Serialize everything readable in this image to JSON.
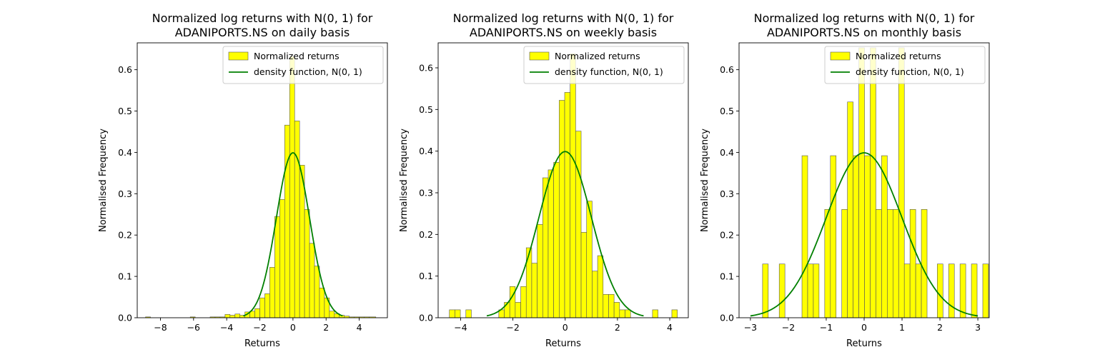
{
  "chart_data": [
    {
      "type": "bar",
      "title": "Normalized log returns with N(0, 1) for\nADANIPORTS.NS on daily basis",
      "xlabel": "Returns",
      "ylabel": "Normalised Frequency",
      "xlim": [
        -9.4,
        5.7
      ],
      "ylim": [
        0,
        0.665
      ],
      "xticks": [
        -8,
        -6,
        -4,
        -2,
        0,
        2,
        4
      ],
      "yticks": [
        0.0,
        0.1,
        0.2,
        0.3,
        0.4,
        0.5,
        0.6
      ],
      "legend": {
        "position": "top-right",
        "entries": [
          "Normalized returns",
          "density function, N(0, 1)"
        ]
      },
      "histogram": {
        "name": "Normalized returns",
        "color": "#ffff00",
        "edgecolor": "#555555",
        "bins": [
          [
            -8.9,
            -8.6,
            0.002
          ],
          [
            -6.2,
            -5.9,
            0.002
          ],
          [
            -5.0,
            -4.7,
            0.002
          ],
          [
            -4.7,
            -4.4,
            0.002
          ],
          [
            -4.4,
            -4.1,
            0.002
          ],
          [
            -4.1,
            -3.8,
            0.008
          ],
          [
            -3.8,
            -3.5,
            0.006
          ],
          [
            -3.5,
            -3.2,
            0.009
          ],
          [
            -3.2,
            -2.9,
            0.006
          ],
          [
            -2.9,
            -2.6,
            0.014
          ],
          [
            -2.6,
            -2.3,
            0.016
          ],
          [
            -2.3,
            -2.0,
            0.022
          ],
          [
            -2.0,
            -1.7,
            0.048
          ],
          [
            -1.7,
            -1.4,
            0.058
          ],
          [
            -1.4,
            -1.1,
            0.122
          ],
          [
            -1.1,
            -0.8,
            0.245
          ],
          [
            -0.8,
            -0.5,
            0.286
          ],
          [
            -0.5,
            -0.2,
            0.466
          ],
          [
            -0.2,
            0.1,
            0.632
          ],
          [
            0.1,
            0.4,
            0.476
          ],
          [
            0.4,
            0.7,
            0.369
          ],
          [
            0.7,
            1.0,
            0.262
          ],
          [
            1.0,
            1.3,
            0.18
          ],
          [
            1.3,
            1.6,
            0.125
          ],
          [
            1.6,
            1.9,
            0.072
          ],
          [
            1.9,
            2.2,
            0.048
          ],
          [
            2.2,
            2.5,
            0.016
          ],
          [
            2.5,
            2.8,
            0.01
          ],
          [
            2.8,
            3.1,
            0.006
          ],
          [
            3.1,
            3.4,
            0.004
          ],
          [
            3.4,
            3.7,
            0.002
          ],
          [
            3.7,
            4.0,
            0.002
          ],
          [
            4.0,
            4.3,
            0.002
          ],
          [
            4.3,
            4.6,
            0.002
          ],
          [
            4.6,
            5.0,
            0.002
          ]
        ]
      },
      "density": {
        "name": "density function, N(0, 1)",
        "color": "#008000",
        "x_range": [
          -3,
          3
        ]
      }
    },
    {
      "type": "bar",
      "title": "Normalized log returns with N(0, 1) for\nADANIPORTS.NS on weekly basis",
      "xlabel": "Returns",
      "ylabel": "Normalised Frequency",
      "xlim": [
        -4.86,
        4.71
      ],
      "ylim": [
        0,
        0.66
      ],
      "xticks": [
        -4,
        -2,
        0,
        2,
        4
      ],
      "yticks": [
        0.0,
        0.1,
        0.2,
        0.3,
        0.4,
        0.5,
        0.6
      ],
      "legend": {
        "position": "top-right",
        "entries": [
          "Normalized returns",
          "density function, N(0, 1)"
        ]
      },
      "histogram": {
        "name": "Normalized returns",
        "color": "#ffff00",
        "edgecolor": "#555555",
        "bins": [
          [
            -4.43,
            -4.22,
            0.019
          ],
          [
            -4.22,
            -4.01,
            0.019
          ],
          [
            -3.8,
            -3.59,
            0.019
          ],
          [
            -2.54,
            -2.33,
            0.019
          ],
          [
            -2.33,
            -2.12,
            0.037
          ],
          [
            -2.12,
            -1.91,
            0.075
          ],
          [
            -1.91,
            -1.7,
            0.037
          ],
          [
            -1.7,
            -1.49,
            0.075
          ],
          [
            -1.49,
            -1.28,
            0.168
          ],
          [
            -1.28,
            -1.07,
            0.131
          ],
          [
            -1.07,
            -0.86,
            0.224
          ],
          [
            -0.86,
            -0.65,
            0.336
          ],
          [
            -0.65,
            -0.44,
            0.355
          ],
          [
            -0.44,
            -0.23,
            0.373
          ],
          [
            -0.23,
            -0.02,
            0.522
          ],
          [
            -0.02,
            0.19,
            0.541
          ],
          [
            0.19,
            0.4,
            0.634
          ],
          [
            0.4,
            0.61,
            0.448
          ],
          [
            0.61,
            0.82,
            0.205
          ],
          [
            0.82,
            1.03,
            0.28
          ],
          [
            1.03,
            1.24,
            0.112
          ],
          [
            1.24,
            1.45,
            0.149
          ],
          [
            1.45,
            1.66,
            0.056
          ],
          [
            1.66,
            1.87,
            0.056
          ],
          [
            1.87,
            2.08,
            0.037
          ],
          [
            2.08,
            2.29,
            0.019
          ],
          [
            2.29,
            2.5,
            0.019
          ],
          [
            3.34,
            3.55,
            0.019
          ],
          [
            4.08,
            4.29,
            0.019
          ]
        ]
      },
      "density": {
        "name": "density function, N(0, 1)",
        "color": "#008000",
        "x_range": [
          -3,
          3
        ]
      }
    },
    {
      "type": "bar",
      "title": "Normalized log returns with N(0, 1) for\nADANIPORTS.NS on monthly basis",
      "xlabel": "Returns",
      "ylabel": "Normalised Frequency",
      "xlim": [
        -3.3,
        3.3
      ],
      "ylim": [
        0,
        0.665
      ],
      "xticks": [
        -3,
        -2,
        -1,
        0,
        1,
        2,
        3
      ],
      "yticks": [
        0.0,
        0.1,
        0.2,
        0.3,
        0.4,
        0.5,
        0.6
      ],
      "legend": {
        "position": "top-right",
        "entries": [
          "Normalized returns",
          "density function, N(0, 1)"
        ]
      },
      "histogram": {
        "name": "Normalized returns",
        "color": "#ffff00",
        "edgecolor": "#555555",
        "bins": [
          [
            -2.68,
            -2.53,
            0.13
          ],
          [
            -2.24,
            -2.09,
            0.13
          ],
          [
            -1.64,
            -1.49,
            0.392
          ],
          [
            -1.49,
            -1.34,
            0.13
          ],
          [
            -1.34,
            -1.19,
            0.13
          ],
          [
            -1.04,
            -0.89,
            0.262
          ],
          [
            -0.89,
            -0.74,
            0.392
          ],
          [
            -0.59,
            -0.44,
            0.262
          ],
          [
            -0.44,
            -0.29,
            0.522
          ],
          [
            -0.29,
            -0.14,
            0.392
          ],
          [
            -0.14,
            0.01,
            0.653
          ],
          [
            0.01,
            0.16,
            0.392
          ],
          [
            0.16,
            0.31,
            0.653
          ],
          [
            0.31,
            0.46,
            0.262
          ],
          [
            0.46,
            0.61,
            0.392
          ],
          [
            0.61,
            0.76,
            0.262
          ],
          [
            0.76,
            0.91,
            0.262
          ],
          [
            0.91,
            1.06,
            0.653
          ],
          [
            1.06,
            1.21,
            0.13
          ],
          [
            1.21,
            1.36,
            0.262
          ],
          [
            1.36,
            1.51,
            0.13
          ],
          [
            1.51,
            1.66,
            0.262
          ],
          [
            1.93,
            2.08,
            0.13
          ],
          [
            2.23,
            2.38,
            0.13
          ],
          [
            2.53,
            2.68,
            0.13
          ],
          [
            2.83,
            2.98,
            0.13
          ],
          [
            3.13,
            3.28,
            0.13
          ]
        ]
      },
      "density": {
        "name": "density function, N(0, 1)",
        "color": "#008000",
        "x_range": [
          -3,
          3
        ]
      }
    }
  ]
}
